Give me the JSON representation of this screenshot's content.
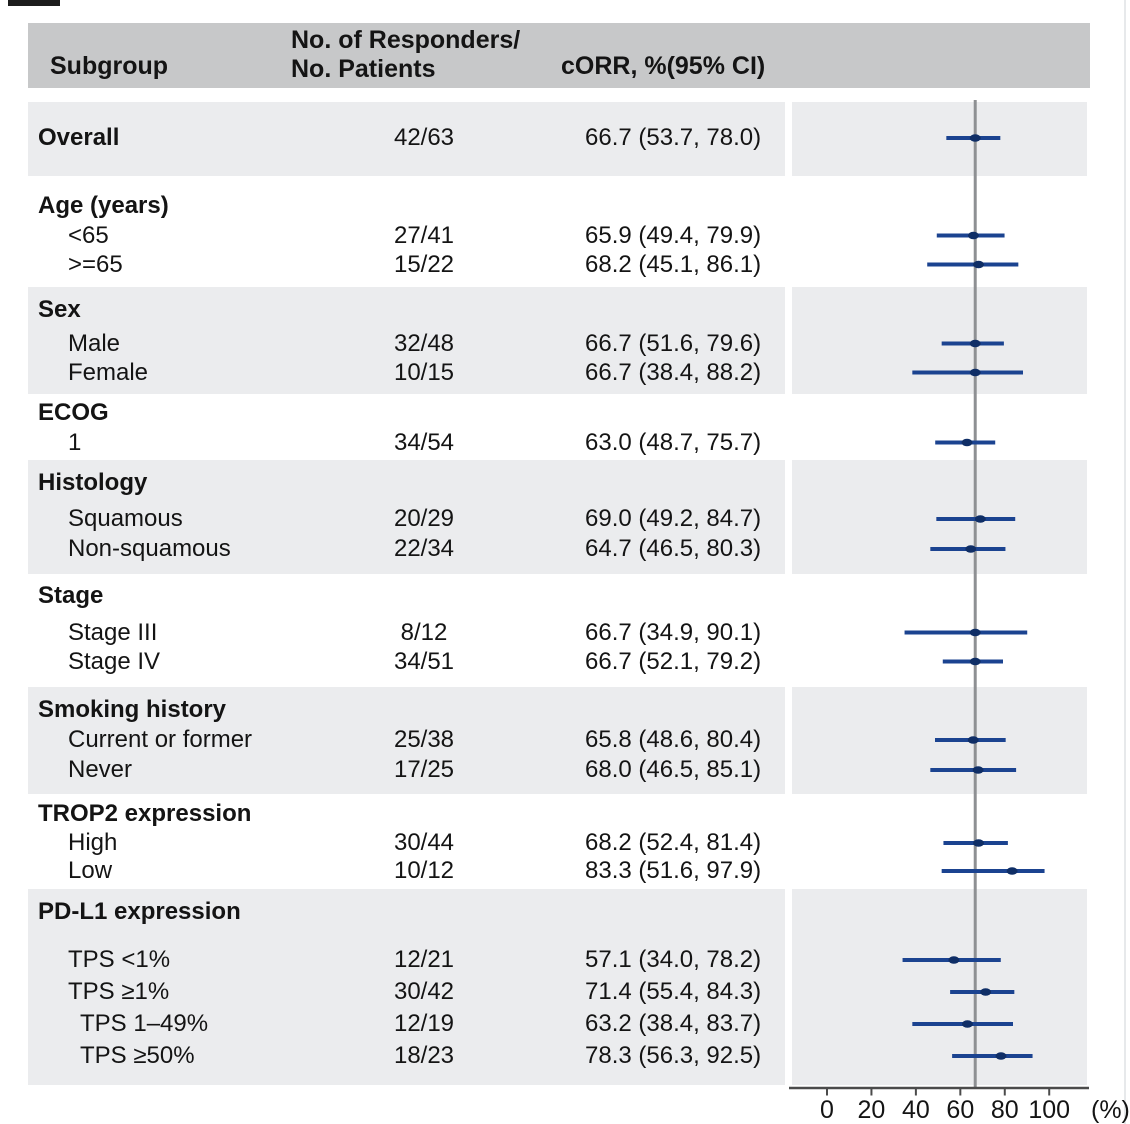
{
  "header": {
    "col_subgroup": "Subgroup",
    "col_n_line1": "No. of Responders/",
    "col_n_line2": "No. Patients",
    "col_corr": "cORR, %(95% CI)"
  },
  "colors": {
    "header_bg": "#c7c8c9",
    "band_gray": "#ebecee",
    "band_white": "#ffffff",
    "ci_line": "#1b4390",
    "ci_dot": "#0f2e66",
    "ref_line": "#8e9093",
    "axis": "#4b4b4b",
    "text": "#141414"
  },
  "chart_data": {
    "type": "forest",
    "xlabel": "(%)",
    "x_axis": {
      "ticks": [
        0,
        20,
        40,
        60,
        80,
        100
      ],
      "unit": "(%)"
    },
    "xlim": [
      0,
      100
    ],
    "reference_line": 66.7,
    "grid": false,
    "legend": null,
    "sections": [
      {
        "header": null,
        "shade": "gray",
        "rows": [
          {
            "label": "Overall",
            "bold": true,
            "indent": 0,
            "n": "42/63",
            "corr": "66.7 (53.7, 78.0)",
            "est": 66.7,
            "lo": 53.7,
            "hi": 78.0
          }
        ]
      },
      {
        "header": "Age (years)",
        "shade": "white",
        "rows": [
          {
            "label": "<65",
            "indent": 1,
            "n": "27/41",
            "corr": "65.9 (49.4, 79.9)",
            "est": 65.9,
            "lo": 49.4,
            "hi": 79.9
          },
          {
            "label": ">=65",
            "indent": 1,
            "n": "15/22",
            "corr": "68.2 (45.1, 86.1)",
            "est": 68.2,
            "lo": 45.1,
            "hi": 86.1
          }
        ]
      },
      {
        "header": "Sex",
        "shade": "gray",
        "rows": [
          {
            "label": "Male",
            "indent": 1,
            "n": "32/48",
            "corr": "66.7 (51.6, 79.6)",
            "est": 66.7,
            "lo": 51.6,
            "hi": 79.6
          },
          {
            "label": "Female",
            "indent": 1,
            "n": "10/15",
            "corr": "66.7 (38.4, 88.2)",
            "est": 66.7,
            "lo": 38.4,
            "hi": 88.2
          }
        ]
      },
      {
        "header": "ECOG",
        "shade": "white",
        "rows": [
          {
            "label": "1",
            "indent": 1,
            "n": "34/54",
            "corr": "63.0 (48.7, 75.7)",
            "est": 63.0,
            "lo": 48.7,
            "hi": 75.7
          }
        ]
      },
      {
        "header": "Histology",
        "shade": "gray",
        "rows": [
          {
            "label": "Squamous",
            "indent": 1,
            "n": "20/29",
            "corr": "69.0 (49.2, 84.7)",
            "est": 69.0,
            "lo": 49.2,
            "hi": 84.7
          },
          {
            "label": "Non-squamous",
            "indent": 1,
            "n": "22/34",
            "corr": "64.7 (46.5, 80.3)",
            "est": 64.7,
            "lo": 46.5,
            "hi": 80.3
          }
        ]
      },
      {
        "header": "Stage",
        "shade": "white",
        "rows": [
          {
            "label": "Stage III",
            "indent": 1,
            "n": "8/12",
            "corr": "66.7 (34.9, 90.1)",
            "est": 66.7,
            "lo": 34.9,
            "hi": 90.1
          },
          {
            "label": "Stage IV",
            "indent": 1,
            "n": "34/51",
            "corr": "66.7 (52.1, 79.2)",
            "est": 66.7,
            "lo": 52.1,
            "hi": 79.2
          }
        ]
      },
      {
        "header": "Smoking history",
        "shade": "gray",
        "rows": [
          {
            "label": "Current or former",
            "indent": 1,
            "n": "25/38",
            "corr": "65.8 (48.6, 80.4)",
            "est": 65.8,
            "lo": 48.6,
            "hi": 80.4
          },
          {
            "label": "Never",
            "indent": 1,
            "n": "17/25",
            "corr": "68.0 (46.5, 85.1)",
            "est": 68.0,
            "lo": 46.5,
            "hi": 85.1
          }
        ]
      },
      {
        "header": "TROP2 expression",
        "shade": "white",
        "rows": [
          {
            "label": "High",
            "indent": 1,
            "n": "30/44",
            "corr": "68.2 (52.4, 81.4)",
            "est": 68.2,
            "lo": 52.4,
            "hi": 81.4
          },
          {
            "label": "Low",
            "indent": 1,
            "n": "10/12",
            "corr": "83.3 (51.6, 97.9)",
            "est": 83.3,
            "lo": 51.6,
            "hi": 97.9
          }
        ]
      },
      {
        "header": "PD-L1 expression",
        "shade": "gray",
        "rows": [
          {
            "label": "TPS <1%",
            "indent": 1,
            "n": "12/21",
            "corr": "57.1 (34.0, 78.2)",
            "est": 57.1,
            "lo": 34.0,
            "hi": 78.2
          },
          {
            "label": "TPS ≥1%",
            "indent": 1,
            "n": "30/42",
            "corr": "71.4 (55.4, 84.3)",
            "est": 71.4,
            "lo": 55.4,
            "hi": 84.3
          },
          {
            "label": "TPS 1–49%",
            "indent": 2,
            "n": "12/19",
            "corr": "63.2 (38.4, 83.7)",
            "est": 63.2,
            "lo": 38.4,
            "hi": 83.7
          },
          {
            "label": "TPS ≥50%",
            "indent": 2,
            "n": "18/23",
            "corr": "78.3 (56.3, 92.5)",
            "est": 78.3,
            "lo": 56.3,
            "hi": 92.5
          }
        ]
      }
    ]
  }
}
